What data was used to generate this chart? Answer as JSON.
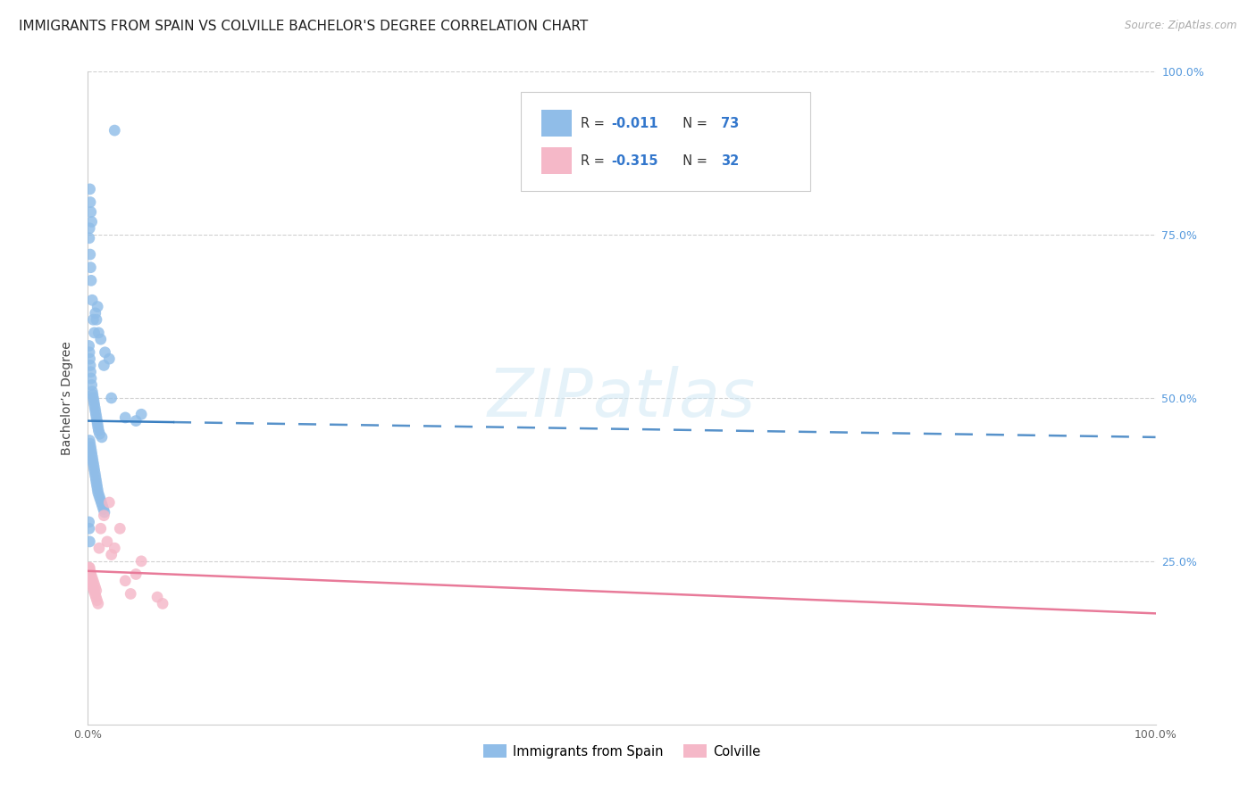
{
  "title": "IMMIGRANTS FROM SPAIN VS COLVILLE BACHELOR'S DEGREE CORRELATION CHART",
  "source": "Source: ZipAtlas.com",
  "ylabel": "Bachelor’s Degree",
  "legend_label1": "Immigrants from Spain",
  "legend_label2": "Colville",
  "r1": "-0.011",
  "n1": "73",
  "r2": "-0.315",
  "n2": "32",
  "blue_color": "#90bde8",
  "pink_color": "#f5b8c8",
  "blue_line_color": "#3a7fc1",
  "pink_line_color": "#e87a99",
  "blue_x": [
    0.18,
    0.22,
    0.28,
    0.35,
    0.15,
    0.12,
    0.2,
    0.25,
    0.3,
    0.4,
    0.5,
    0.6,
    0.7,
    0.8,
    0.9,
    1.0,
    1.2,
    1.5,
    2.0,
    2.5,
    0.1,
    0.14,
    0.18,
    0.22,
    0.26,
    0.3,
    0.35,
    0.4,
    0.45,
    0.5,
    0.55,
    0.6,
    0.65,
    0.7,
    0.75,
    0.8,
    0.85,
    0.9,
    0.95,
    1.0,
    1.1,
    1.3,
    1.6,
    0.15,
    0.2,
    0.25,
    0.3,
    0.35,
    0.4,
    0.45,
    0.5,
    0.55,
    0.6,
    0.65,
    0.7,
    0.75,
    0.8,
    0.85,
    0.9,
    0.95,
    1.05,
    1.15,
    1.25,
    1.35,
    1.45,
    1.55,
    2.2,
    3.5,
    4.5,
    5.0,
    0.1,
    0.12,
    0.16
  ],
  "blue_y": [
    82.0,
    80.0,
    78.5,
    77.0,
    76.0,
    74.5,
    72.0,
    70.0,
    68.0,
    65.0,
    62.0,
    60.0,
    63.0,
    62.0,
    64.0,
    60.0,
    59.0,
    55.0,
    56.0,
    91.0,
    58.0,
    57.0,
    56.0,
    55.0,
    54.0,
    53.0,
    52.0,
    51.0,
    50.5,
    50.0,
    49.5,
    49.0,
    48.5,
    48.0,
    47.5,
    47.0,
    46.5,
    46.0,
    45.5,
    45.0,
    44.5,
    44.0,
    57.0,
    43.5,
    43.0,
    42.5,
    42.0,
    41.5,
    41.0,
    40.5,
    40.0,
    39.5,
    39.0,
    38.5,
    38.0,
    37.5,
    37.0,
    36.5,
    36.0,
    35.5,
    35.0,
    34.5,
    34.0,
    33.5,
    33.0,
    32.5,
    50.0,
    47.0,
    46.5,
    47.5,
    31.0,
    30.0,
    28.0
  ],
  "pink_x": [
    0.12,
    0.18,
    0.25,
    0.35,
    0.45,
    0.55,
    0.65,
    0.75,
    0.85,
    0.95,
    1.05,
    1.2,
    1.5,
    2.0,
    2.5,
    3.0,
    3.5,
    4.0,
    4.5,
    5.0,
    0.15,
    0.2,
    0.28,
    0.38,
    0.48,
    0.58,
    0.68,
    0.78,
    1.8,
    2.2,
    6.5,
    7.0
  ],
  "pink_y": [
    24.0,
    23.0,
    22.0,
    21.5,
    21.0,
    20.5,
    20.0,
    19.5,
    19.0,
    18.5,
    27.0,
    30.0,
    32.0,
    34.0,
    27.0,
    30.0,
    22.0,
    20.0,
    23.0,
    25.0,
    24.0,
    23.5,
    23.0,
    22.5,
    22.0,
    21.5,
    21.0,
    20.5,
    28.0,
    26.0,
    19.5,
    18.5
  ],
  "blue_trendline": [
    0.0,
    100.0,
    46.5,
    44.0
  ],
  "blue_solid_end": 8.0,
  "pink_trendline": [
    0.0,
    100.0,
    23.5,
    17.0
  ],
  "xlim": [
    0,
    100
  ],
  "ylim": [
    0,
    100
  ],
  "yticks": [
    25,
    50,
    75,
    100
  ],
  "xticks": [
    0,
    100
  ],
  "title_fontsize": 11,
  "axis_label_fontsize": 9,
  "marker_size": 85
}
